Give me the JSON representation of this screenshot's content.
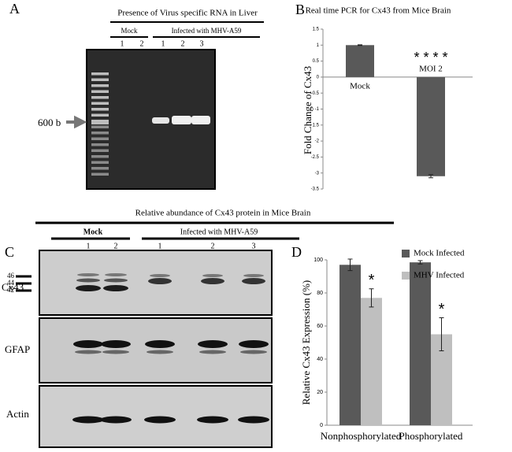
{
  "panels": {
    "a": {
      "label": "A",
      "title": "Presence of Virus specific RNA in Liver",
      "groups": [
        "Mock",
        "Infected with MHV-A59"
      ],
      "lanes": [
        "1",
        "2",
        "1",
        "2",
        "3"
      ],
      "marker": "600 b"
    },
    "c": {
      "label": "C",
      "title": "Relative abundance of Cx43 protein in Mice Brain",
      "groups": [
        "Mock",
        "Infected with MHV-A59"
      ],
      "lanes": [
        "1",
        "2",
        "1",
        "2",
        "3"
      ],
      "blots": [
        "Cx43",
        "GFAP",
        "Actin"
      ],
      "sizes": [
        "46",
        "44",
        "42"
      ]
    }
  },
  "chart_data": [
    {
      "type": "bar",
      "label": "B",
      "title": "Real time PCR for Cx43 from Mice Brain",
      "ylabel": "Fold Change of Cx43",
      "categories": [
        "Mock",
        "MOI 2"
      ],
      "values": [
        1,
        -3.1
      ],
      "errors": [
        0.01,
        0.05
      ],
      "color": "#595959",
      "ylim": [
        -3.5,
        1.5
      ],
      "yticks": [
        -3.5,
        -3,
        -2.5,
        -2,
        -1.5,
        -1,
        -0.5,
        0,
        0.5,
        1,
        1.5
      ],
      "annotations": [
        "* * * *"
      ]
    },
    {
      "type": "bar",
      "label": "D",
      "ylabel": "Relative Cx43 Expression (%)",
      "categories": [
        "Nonphosphorylated",
        "Phosphorylated"
      ],
      "series": [
        {
          "name": "Mock Infected",
          "color": "#595959",
          "values": [
            97,
            98.5
          ],
          "errors": [
            3.5,
            1
          ]
        },
        {
          "name": "MHV Infected",
          "color": "#bfbfbf",
          "values": [
            77,
            55
          ],
          "errors": [
            5.5,
            10
          ]
        }
      ],
      "ylim": [
        0,
        100
      ],
      "yticks": [
        0,
        20,
        40,
        60,
        80,
        100
      ],
      "annotations": [
        "*",
        "*"
      ]
    }
  ]
}
